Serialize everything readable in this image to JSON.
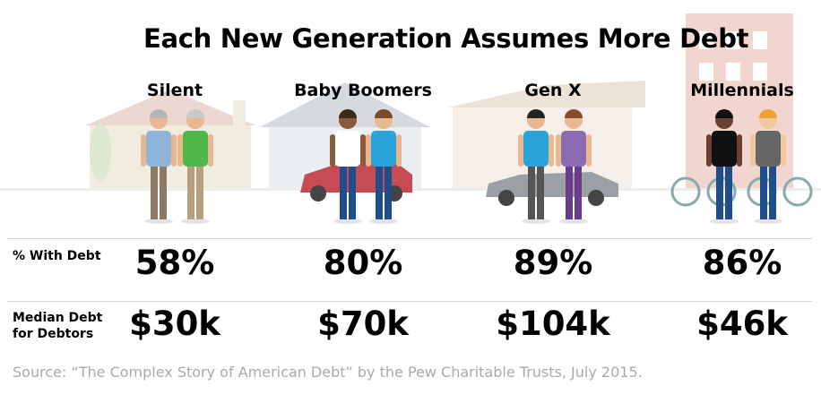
{
  "title": "Each New Generation Assumes More Debt",
  "columns": [
    "Silent",
    "Baby Boomers",
    "Gen X",
    "Millennials"
  ],
  "rows": [
    {
      "label": "% With Debt",
      "values": [
        "58%",
        "80%",
        "89%",
        "86%"
      ]
    },
    {
      "label": "Median Debt for Debtors",
      "values": [
        "$30k",
        "$70k",
        "$104k",
        "$46k"
      ]
    }
  ],
  "source": "Source: “The Complex Story of American Debt” by the Pew Charitable Trusts, July 2015."
}
